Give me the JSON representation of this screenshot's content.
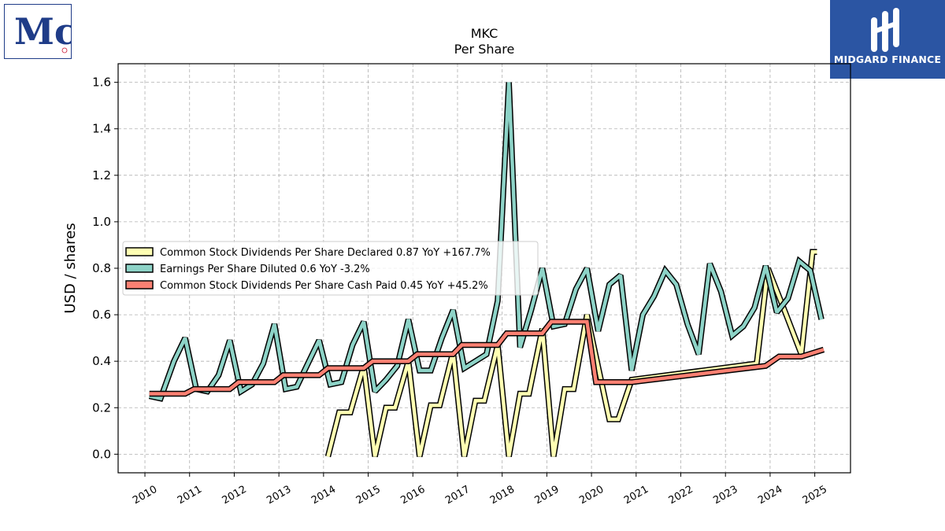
{
  "branding": {
    "company_logo_icon": "mccormick-logo-icon",
    "company_logo_letters": "Mc",
    "watermark_icon": "midgard-logo-icon",
    "watermark_text": "MIDGARD FINANCE",
    "watermark_color": "#2b55a3"
  },
  "chart_data": {
    "type": "line",
    "title": "MKC",
    "subtitle": "Per  Share",
    "xlabel": "",
    "ylabel": "USD / shares",
    "xlim": [
      2009.4,
      2025.8
    ],
    "ylim": [
      -0.08,
      1.68
    ],
    "x_ticks": [
      2010,
      2011,
      2012,
      2013,
      2014,
      2015,
      2016,
      2017,
      2018,
      2019,
      2020,
      2021,
      2022,
      2023,
      2024,
      2025
    ],
    "y_ticks": [
      0.0,
      0.2,
      0.4,
      0.6,
      0.8,
      1.0,
      1.2,
      1.4,
      1.6
    ],
    "y_tick_labels": [
      "0.0",
      "0.2",
      "0.4",
      "0.6",
      "0.8",
      "1.0",
      "1.2",
      "1.4",
      "1.6"
    ],
    "grid": true,
    "legend_position": "center-left",
    "series": [
      {
        "name": "Common Stock Dividends Per Share Declared",
        "legend_label": "Common Stock Dividends Per Share Declared  0.87 YoY +167.7%",
        "color": "#ffffb3",
        "x": [
          2014.1,
          2014.35,
          2014.6,
          2014.9,
          2015.15,
          2015.4,
          2015.6,
          2015.9,
          2016.15,
          2016.4,
          2016.6,
          2016.9,
          2017.15,
          2017.4,
          2017.6,
          2017.9,
          2018.15,
          2018.4,
          2018.6,
          2018.9,
          2019.15,
          2019.4,
          2019.6,
          2019.9,
          2020.4,
          2020.6,
          2020.9,
          2023.7,
          2023.95,
          2024.3,
          2024.7,
          2024.95,
          2025.05
        ],
        "values": [
          -0.01,
          0.18,
          0.18,
          0.38,
          -0.01,
          0.2,
          0.2,
          0.4,
          -0.01,
          0.21,
          0.21,
          0.44,
          -0.01,
          0.23,
          0.23,
          0.47,
          -0.01,
          0.26,
          0.26,
          0.54,
          -0.01,
          0.28,
          0.28,
          0.6,
          0.15,
          0.15,
          0.32,
          0.39,
          0.8,
          0.63,
          0.43,
          0.87,
          0.87
        ]
      },
      {
        "name": "Earnings Per Share Diluted",
        "legend_label": "Earnings Per Share Diluted  0.6 YoY -3.2%",
        "color": "#8dd3c7",
        "x": [
          2010.1,
          2010.35,
          2010.65,
          2010.9,
          2011.15,
          2011.4,
          2011.65,
          2011.9,
          2012.15,
          2012.4,
          2012.65,
          2012.9,
          2013.15,
          2013.4,
          2013.65,
          2013.9,
          2014.15,
          2014.4,
          2014.65,
          2014.9,
          2015.15,
          2015.4,
          2015.65,
          2015.9,
          2016.15,
          2016.4,
          2016.65,
          2016.9,
          2017.15,
          2017.4,
          2017.65,
          2017.9,
          2018.15,
          2018.4,
          2018.65,
          2018.9,
          2019.15,
          2019.4,
          2019.65,
          2019.9,
          2020.15,
          2020.4,
          2020.65,
          2020.9,
          2021.15,
          2021.4,
          2021.65,
          2021.9,
          2022.15,
          2022.4,
          2022.65,
          2022.9,
          2023.15,
          2023.4,
          2023.65,
          2023.9,
          2024.15,
          2024.4,
          2024.65,
          2024.9,
          2025.15
        ],
        "values": [
          0.25,
          0.24,
          0.4,
          0.5,
          0.28,
          0.27,
          0.34,
          0.49,
          0.27,
          0.3,
          0.39,
          0.56,
          0.28,
          0.29,
          0.39,
          0.49,
          0.3,
          0.31,
          0.47,
          0.57,
          0.27,
          0.32,
          0.38,
          0.58,
          0.36,
          0.36,
          0.5,
          0.62,
          0.37,
          0.4,
          0.43,
          0.66,
          1.6,
          0.46,
          0.62,
          0.8,
          0.55,
          0.56,
          0.71,
          0.8,
          0.53,
          0.73,
          0.77,
          0.36,
          0.6,
          0.68,
          0.79,
          0.73,
          0.56,
          0.43,
          0.82,
          0.7,
          0.51,
          0.55,
          0.63,
          0.81,
          0.61,
          0.67,
          0.83,
          0.79,
          0.58
        ]
      },
      {
        "name": "Common Stock Dividends Per Share Cash Paid",
        "legend_label": "Common Stock Dividends Per Share Cash Paid  0.45 YoY +45.2%",
        "color": "#fb8072",
        "x": [
          2010.1,
          2010.9,
          2011.1,
          2011.9,
          2012.1,
          2012.9,
          2013.1,
          2013.9,
          2014.1,
          2014.9,
          2015.1,
          2015.9,
          2016.1,
          2016.9,
          2017.1,
          2017.9,
          2018.1,
          2018.9,
          2019.1,
          2019.9,
          2020.1,
          2020.9,
          2023.9,
          2024.2,
          2024.7,
          2025.2
        ],
        "values": [
          0.26,
          0.26,
          0.28,
          0.28,
          0.31,
          0.31,
          0.34,
          0.34,
          0.37,
          0.37,
          0.4,
          0.4,
          0.43,
          0.43,
          0.47,
          0.47,
          0.52,
          0.52,
          0.57,
          0.57,
          0.31,
          0.31,
          0.38,
          0.42,
          0.42,
          0.45
        ]
      }
    ]
  }
}
